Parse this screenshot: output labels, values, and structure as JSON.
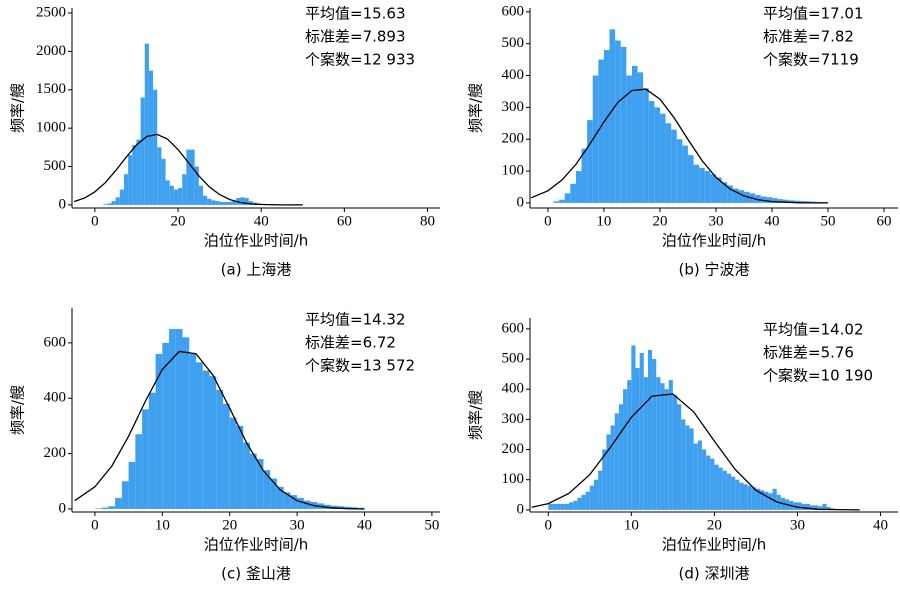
{
  "chart_data": [
    {
      "type": "histogram",
      "caption": "(a) 上海港",
      "xlabel": "泊位作业时间/h",
      "ylabel": "频率/艘",
      "annotations": [
        "平均值=15.63",
        "标准差=7.893",
        "个案数=12 933"
      ],
      "color": "#3fa0f0",
      "bins": [
        0,
        1,
        2,
        3,
        4,
        5,
        6,
        7,
        8,
        9,
        10,
        11,
        12,
        13,
        14,
        15,
        16,
        17,
        18,
        19,
        20,
        21,
        22,
        23,
        24,
        25,
        26,
        27,
        28,
        29,
        30,
        31,
        32,
        33,
        34,
        35,
        36,
        37,
        38,
        39,
        40,
        41,
        42,
        43,
        44,
        45,
        46,
        47,
        48,
        49,
        50
      ],
      "values": [
        0,
        0,
        10,
        20,
        50,
        100,
        200,
        400,
        650,
        780,
        850,
        1400,
        2100,
        1750,
        1500,
        750,
        600,
        320,
        250,
        200,
        220,
        400,
        720,
        720,
        500,
        250,
        120,
        80,
        60,
        50,
        40,
        40,
        40,
        50,
        90,
        100,
        90,
        50,
        30,
        20,
        15,
        10,
        10,
        10,
        5,
        5,
        5,
        5,
        10,
        5
      ],
      "curve": {
        "color": "#000000",
        "x": [
          -5,
          -2.5,
          0,
          2.5,
          5,
          7.5,
          10,
          12.5,
          15,
          17.5,
          20,
          22.5,
          25,
          27.5,
          30,
          32.5,
          35,
          37.5,
          40,
          45,
          50
        ],
        "values": [
          44,
          90,
          171,
          290,
          447,
          621,
          782,
          891,
          918,
          856,
          722,
          551,
          380,
          238,
          134,
          69,
          32,
          13,
          5,
          0.5,
          0
        ]
      },
      "xlim": [
        -5.5,
        83
      ],
      "ylim": [
        -40,
        2565
      ],
      "xticks": [
        0,
        20,
        40,
        60,
        80
      ],
      "yticks": [
        0,
        500,
        1000,
        1500,
        2000,
        2500
      ]
    },
    {
      "type": "histogram",
      "caption": "(b) 宁波港",
      "xlabel": "泊位作业时间/h",
      "ylabel": "频率/艘",
      "annotations": [
        "平均值=17.01",
        "标准差=7.82",
        "个案数=7119"
      ],
      "color": "#3fa0f0",
      "bins": [
        0,
        1,
        2,
        3,
        4,
        5,
        6,
        7,
        8,
        9,
        10,
        11,
        12,
        13,
        14,
        15,
        16,
        17,
        18,
        19,
        20,
        21,
        22,
        23,
        24,
        25,
        26,
        27,
        28,
        29,
        30,
        31,
        32,
        33,
        34,
        35,
        36,
        37,
        38,
        39,
        40,
        41,
        42,
        43,
        44,
        45,
        46,
        47,
        48,
        49,
        50
      ],
      "values": [
        0,
        5,
        10,
        30,
        60,
        100,
        170,
        260,
        400,
        450,
        480,
        545,
        510,
        490,
        400,
        430,
        410,
        360,
        320,
        300,
        280,
        250,
        230,
        200,
        180,
        150,
        120,
        110,
        100,
        90,
        80,
        65,
        55,
        45,
        40,
        35,
        30,
        25,
        20,
        18,
        15,
        12,
        10,
        8,
        7,
        6,
        5,
        4,
        3,
        2
      ],
      "curve": {
        "color": "#000000",
        "x": [
          -3,
          0,
          2.5,
          5,
          7.5,
          10,
          12.5,
          15,
          17.5,
          20,
          22.5,
          25,
          27.5,
          30,
          32.5,
          35,
          37.5,
          40,
          45,
          50
        ],
        "values": [
          16,
          38,
          72,
          121,
          185,
          254,
          316,
          353,
          357,
          326,
          268,
          199,
          133,
          80,
          44,
          22,
          10,
          4,
          0.3,
          0
        ]
      },
      "xlim": [
        -3.2,
        62.5
      ],
      "ylim": [
        -16,
        612
      ],
      "xticks": [
        0,
        10,
        20,
        30,
        40,
        50,
        60
      ],
      "yticks": [
        0,
        100,
        200,
        300,
        400,
        500,
        600
      ]
    },
    {
      "type": "histogram",
      "caption": "(c) 釜山港",
      "xlabel": "泊位作业时间/h",
      "ylabel": "频率/艘",
      "annotations": [
        "平均值=14.32",
        "标准差=6.72",
        "个案数=13 572"
      ],
      "color": "#3fa0f0",
      "bins": [
        0,
        1,
        2,
        3,
        4,
        5,
        6,
        7,
        8,
        9,
        10,
        11,
        12,
        13,
        14,
        15,
        16,
        17,
        18,
        19,
        20,
        21,
        22,
        23,
        24,
        25,
        26,
        27,
        28,
        29,
        30,
        31,
        32,
        33,
        34,
        35,
        36,
        37,
        38,
        39,
        40
      ],
      "values": [
        2,
        5,
        10,
        40,
        100,
        170,
        270,
        360,
        420,
        560,
        600,
        650,
        650,
        620,
        560,
        530,
        500,
        480,
        430,
        380,
        330,
        300,
        240,
        200,
        180,
        140,
        110,
        80,
        60,
        50,
        40,
        30,
        25,
        20,
        15,
        12,
        10,
        8,
        6,
        4
      ],
      "curve": {
        "color": "#000000",
        "x": [
          -3,
          0,
          2.5,
          5,
          7.5,
          10,
          12.5,
          15,
          17.5,
          20,
          22.5,
          25,
          27.5,
          30,
          32.5,
          35,
          37.5,
          40
        ],
        "values": [
          30,
          80,
          155,
          263,
          390,
          504,
          569,
          561,
          484,
          364,
          239,
          138,
          69,
          30,
          12,
          4,
          1,
          0
        ]
      },
      "xlim": [
        -3.4,
        51.2
      ],
      "ylim": [
        -11,
        726
      ],
      "xticks": [
        0,
        10,
        20,
        30,
        40,
        50
      ],
      "yticks": [
        0,
        200,
        400,
        600
      ]
    },
    {
      "type": "histogram",
      "caption": "(d) 深圳港",
      "xlabel": "泊位作业时间/h",
      "ylabel": "频率/艘",
      "annotations": [
        "平均值=14.02",
        "标准差=5.76",
        "个案数=10 190"
      ],
      "color": "#3fa0f0",
      "bins": [
        0,
        0.5,
        1,
        1.5,
        2,
        2.5,
        3,
        3.5,
        4,
        4.5,
        5,
        5.5,
        6,
        6.5,
        7,
        7.5,
        8,
        8.5,
        9,
        9.5,
        10,
        10.5,
        11,
        11.5,
        12,
        12.5,
        13,
        13.5,
        14,
        14.5,
        15,
        15.5,
        16,
        16.5,
        17,
        17.5,
        18,
        18.5,
        19,
        19.5,
        20,
        20.5,
        21,
        21.5,
        22,
        22.5,
        23,
        23.5,
        24,
        24.5,
        25,
        25.5,
        26,
        26.5,
        27,
        27.5,
        28,
        28.5,
        29,
        29.5,
        30,
        30.5,
        31,
        31.5,
        32,
        32.5,
        33,
        33.5,
        34,
        34.5,
        35
      ],
      "values": [
        20,
        20,
        20,
        20,
        20,
        25,
        30,
        40,
        50,
        60,
        80,
        100,
        130,
        200,
        250,
        280,
        320,
        350,
        400,
        430,
        545,
        470,
        520,
        440,
        530,
        500,
        440,
        420,
        400,
        430,
        380,
        350,
        300,
        280,
        270,
        220,
        230,
        200,
        180,
        170,
        150,
        140,
        130,
        120,
        110,
        100,
        90,
        85,
        80,
        75,
        70,
        65,
        60,
        55,
        70,
        50,
        40,
        35,
        30,
        25,
        25,
        20,
        20,
        15,
        15,
        12,
        20,
        10,
        5,
        3
      ],
      "curve": {
        "color": "#000000",
        "x": [
          -2,
          0,
          2.5,
          5,
          7.5,
          10,
          12.5,
          15,
          17.5,
          20,
          22.5,
          25,
          27.5,
          30,
          32.5,
          35,
          37.5
        ],
        "values": [
          9,
          21,
          55,
          117,
          208,
          307,
          377,
          384,
          325,
          228,
          134,
          65,
          26,
          9,
          2,
          1,
          0
        ]
      },
      "xlim": [
        -2.2,
        42.1
      ],
      "ylim": [
        -7,
        636
      ],
      "xticks": [
        0,
        10,
        20,
        30,
        40
      ],
      "yticks": [
        0,
        100,
        200,
        300,
        400,
        500,
        600
      ]
    }
  ]
}
